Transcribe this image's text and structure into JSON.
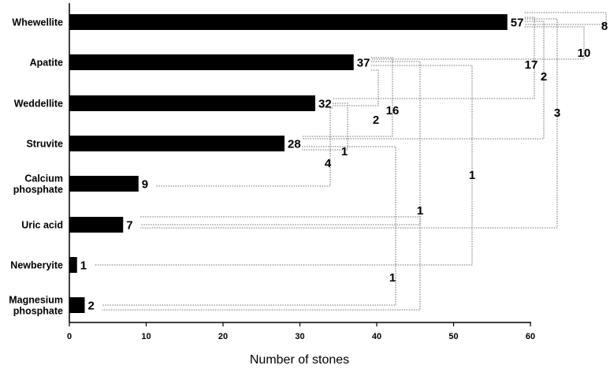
{
  "chart_data": {
    "type": "bar",
    "orientation": "horizontal",
    "categories": [
      [
        "Whewellite"
      ],
      [
        "Apatite"
      ],
      [
        "Weddellite"
      ],
      [
        "Struvite"
      ],
      [
        "Calcium",
        "phosphate"
      ],
      [
        "Uric acid"
      ],
      [
        "Newberyite"
      ],
      [
        "Magnesium",
        "phosphate"
      ]
    ],
    "values": [
      57,
      37,
      32,
      28,
      9,
      7,
      1,
      2
    ],
    "value_labels": [
      "57",
      "37",
      "32",
      "28",
      "9",
      "7",
      "1",
      "2"
    ],
    "xlabel": "Number of stones",
    "ylabel": "",
    "xlim": [
      0,
      60
    ],
    "xticks": [
      0,
      10,
      20,
      30,
      40,
      50,
      60
    ],
    "grid": false,
    "bar_color": "#000000",
    "co_occurrence": [
      {
        "pair": [
          "Whewellite",
          "Apatite"
        ],
        "count": 10
      },
      {
        "pair": [
          "Whewellite",
          "Weddellite"
        ],
        "count": 17
      },
      {
        "pair": [
          "Whewellite",
          "Struvite"
        ],
        "count": 2
      },
      {
        "pair": [
          "Whewellite",
          "Uric acid"
        ],
        "count": 3
      },
      {
        "pair": [
          "Whewellite",
          "Whewellite"
        ],
        "count": 8
      },
      {
        "pair": [
          "Apatite",
          "Weddellite"
        ],
        "count": 2
      },
      {
        "pair": [
          "Apatite",
          "Struvite"
        ],
        "count": 16
      },
      {
        "pair": [
          "Apatite",
          "Newberyite"
        ],
        "count": 1
      },
      {
        "pair": [
          "Apatite",
          "Magnesium phosphate"
        ],
        "count": 1
      },
      {
        "pair": [
          "Weddellite",
          "Struvite"
        ],
        "count": 1
      },
      {
        "pair": [
          "Weddellite",
          "Calcium phosphate"
        ],
        "count": 4
      },
      {
        "pair": [
          "Struvite",
          "Magnesium phosphate"
        ],
        "count": 1
      },
      {
        "pair": [
          "Uric acid",
          "Uric acid"
        ],
        "count": 1
      }
    ]
  }
}
